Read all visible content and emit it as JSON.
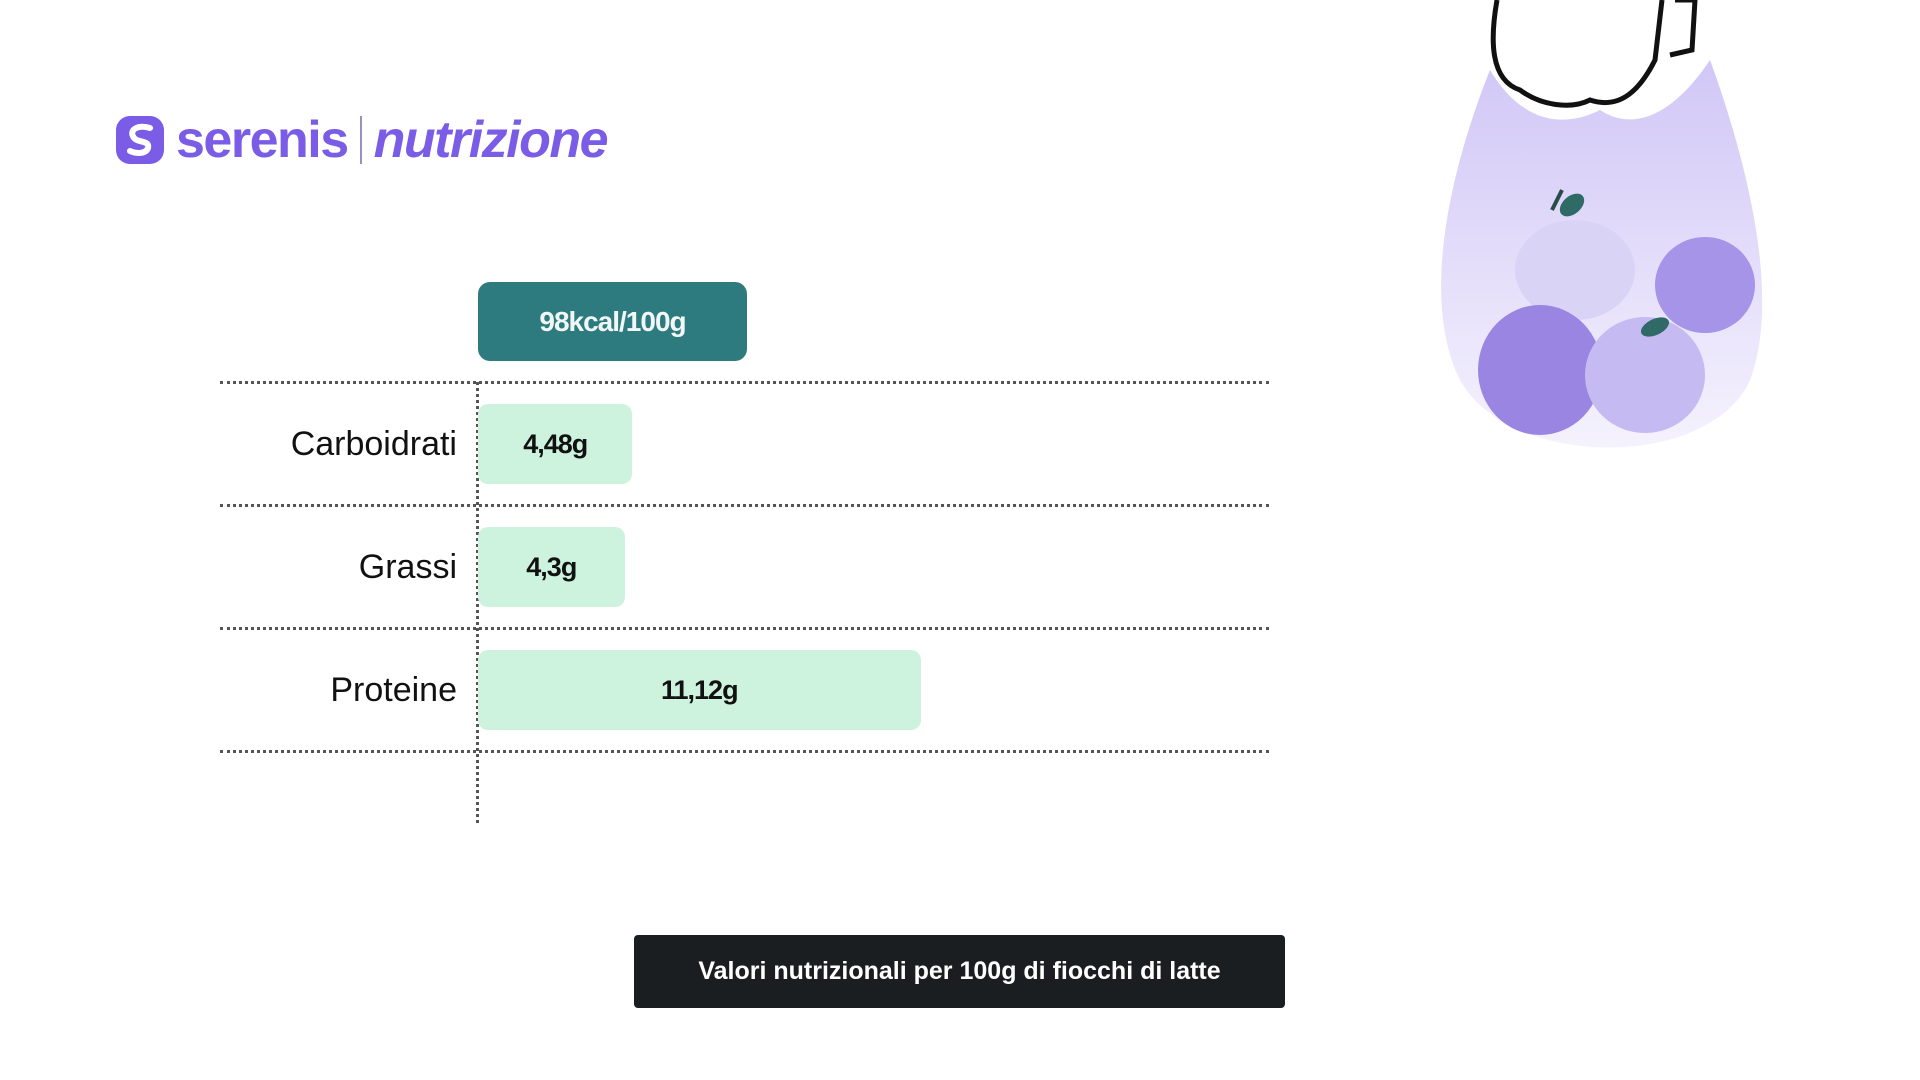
{
  "logo": {
    "brand": "serenis",
    "sub": "nutrizione",
    "color": "#7a5ce6"
  },
  "chart_data": {
    "type": "bar",
    "orientation": "horizontal",
    "header_badge": "98kcal/100g",
    "categories": [
      "Carboidrati",
      "Grassi",
      "Proteine"
    ],
    "values": [
      4.48,
      4.3,
      11.12
    ],
    "value_labels": [
      "4,48g",
      "4,3g",
      "11,12g"
    ],
    "unit": "g",
    "grid": true,
    "colors": {
      "bar": "#cdf3df",
      "badge": "#2e7b7f"
    }
  },
  "caption": "Valori nutrizionali per 100g di fiocchi di latte",
  "illustration": "bag-of-fruit"
}
